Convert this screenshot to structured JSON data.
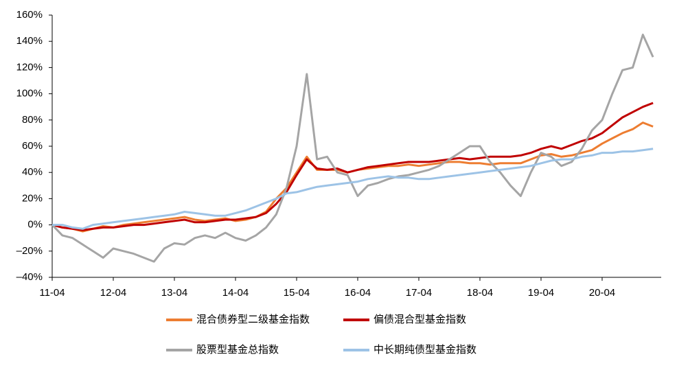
{
  "chart_data": {
    "type": "line",
    "categories": [
      "11-04",
      null,
      null,
      null,
      null,
      null,
      "12-04",
      null,
      null,
      null,
      null,
      null,
      "13-04",
      null,
      null,
      null,
      null,
      null,
      "14-04",
      null,
      null,
      null,
      null,
      null,
      "15-04",
      null,
      null,
      null,
      null,
      null,
      "16-04",
      null,
      null,
      null,
      null,
      null,
      "17-04",
      null,
      null,
      null,
      null,
      null,
      "18-04",
      null,
      null,
      null,
      null,
      null,
      "19-04",
      null,
      null,
      null,
      null,
      null,
      "20-04",
      null,
      null,
      null,
      null,
      null
    ],
    "ylim": [
      -40,
      160
    ],
    "yticks": [
      {
        "value": -40,
        "label": "–40%"
      },
      {
        "value": -20,
        "label": "–20%"
      },
      {
        "value": 0,
        "label": "0%"
      },
      {
        "value": 20,
        "label": "20%"
      },
      {
        "value": 40,
        "label": "40%"
      },
      {
        "value": 60,
        "label": "60%"
      },
      {
        "value": 80,
        "label": "80%"
      },
      {
        "value": 100,
        "label": "100%"
      },
      {
        "value": 120,
        "label": "120%"
      },
      {
        "value": 140,
        "label": "140%"
      },
      {
        "value": 160,
        "label": "160%"
      }
    ],
    "grid": false,
    "series": [
      {
        "name": "混合债券型二级基金指数",
        "color": "#ed7d31",
        "values": [
          0,
          -2,
          -3,
          -5,
          -3,
          -1,
          -2,
          0,
          1,
          2,
          3,
          4,
          5,
          6,
          4,
          3,
          4,
          5,
          3,
          4,
          6,
          10,
          20,
          28,
          40,
          52,
          42,
          42,
          42,
          40,
          42,
          43,
          44,
          45,
          45,
          46,
          45,
          46,
          47,
          48,
          48,
          47,
          47,
          46,
          47,
          47,
          47,
          50,
          53,
          54,
          52,
          53,
          55,
          57,
          62,
          66,
          70,
          73,
          78,
          75
        ]
      },
      {
        "name": "偏债混合型基金指数",
        "color": "#c00000",
        "values": [
          0,
          -2,
          -3,
          -4,
          -3,
          -2,
          -2,
          -1,
          0,
          0,
          1,
          2,
          3,
          4,
          2,
          2,
          3,
          4,
          4,
          5,
          6,
          9,
          16,
          25,
          38,
          50,
          43,
          42,
          43,
          40,
          42,
          44,
          45,
          46,
          47,
          48,
          48,
          48,
          49,
          50,
          51,
          50,
          51,
          52,
          52,
          52,
          53,
          55,
          58,
          60,
          58,
          61,
          64,
          66,
          70,
          76,
          82,
          86,
          90,
          93
        ]
      },
      {
        "name": "股票型基金总指数",
        "color": "#a5a5a5",
        "values": [
          0,
          -8,
          -10,
          -15,
          -20,
          -25,
          -18,
          -20,
          -22,
          -25,
          -28,
          -18,
          -14,
          -15,
          -10,
          -8,
          -10,
          -6,
          -10,
          -12,
          -8,
          -2,
          8,
          28,
          60,
          115,
          50,
          52,
          40,
          38,
          22,
          30,
          32,
          35,
          37,
          38,
          40,
          42,
          45,
          50,
          55,
          60,
          60,
          48,
          40,
          30,
          22,
          40,
          55,
          52,
          45,
          48,
          58,
          72,
          80,
          100,
          118,
          120,
          145,
          128
        ]
      },
      {
        "name": "中长期纯债型基金指数",
        "color": "#9dc3e6",
        "values": [
          0,
          0,
          -2,
          -3,
          0,
          1,
          2,
          3,
          4,
          5,
          6,
          7,
          8,
          10,
          9,
          8,
          7,
          7,
          9,
          11,
          14,
          17,
          20,
          24,
          25,
          27,
          29,
          30,
          31,
          32,
          33,
          35,
          36,
          37,
          36,
          36,
          35,
          35,
          36,
          37,
          38,
          39,
          40,
          41,
          42,
          43,
          44,
          45,
          47,
          49,
          50,
          50,
          52,
          53,
          55,
          55,
          56,
          56,
          57,
          58
        ]
      }
    ]
  }
}
